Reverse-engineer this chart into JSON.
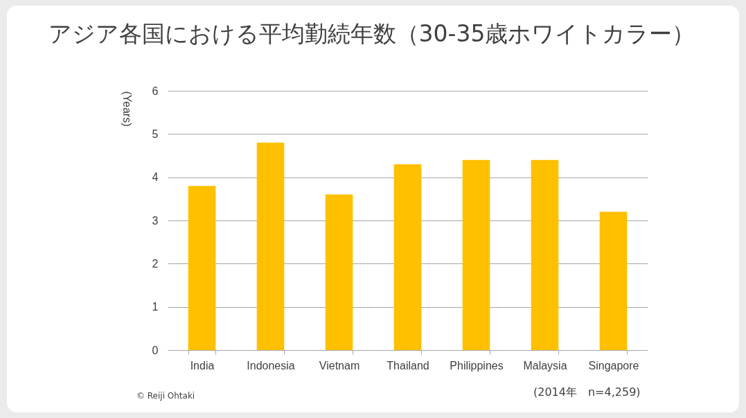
{
  "chart_data": {
    "type": "bar",
    "title": "アジア各国における平均勤続年数（30-35歳ホワイトカラー）",
    "ylabel": "(Years)",
    "categories": [
      "India",
      "Indonesia",
      "Vietnam",
      "Thailand",
      "Philippines",
      "Malaysia",
      "Singapore"
    ],
    "values": [
      3.8,
      4.8,
      3.6,
      4.3,
      4.4,
      4.4,
      3.2
    ],
    "color": "#ffc000",
    "ylim": [
      0,
      6
    ],
    "yticks": [
      0,
      1,
      2,
      3,
      4,
      5,
      6
    ],
    "grid": "y",
    "annotations": [
      "(2014年　n=4,259)",
      "© Reiji Ohtaki"
    ]
  }
}
